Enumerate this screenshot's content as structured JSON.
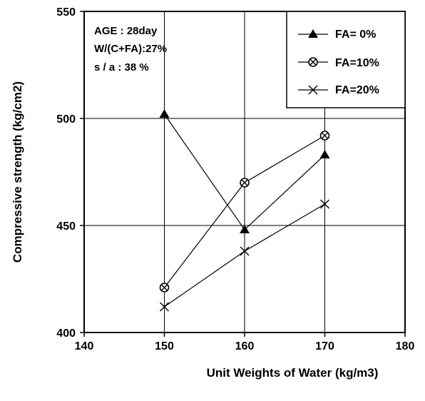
{
  "chart_data": {
    "type": "line",
    "xlabel": "Unit Weights of  Water (kg/m3)",
    "ylabel": "Compressive strength  (kg/cm2)",
    "xlim": [
      140,
      180
    ],
    "ylim": [
      400,
      550
    ],
    "x_ticks": [
      "140",
      "150",
      "160",
      "170",
      "180"
    ],
    "y_ticks": [
      "400",
      "450",
      "500",
      "550"
    ],
    "grid": true,
    "legend_position": "top-right",
    "annotations": [
      "AGE : 28day",
      "W/(C+FA):27%",
      "s / a : 38 %"
    ],
    "series": [
      {
        "name": "FA= 0%",
        "marker": "triangle",
        "x": [
          150,
          160,
          170
        ],
        "values": [
          502,
          448,
          483
        ]
      },
      {
        "name": "FA=10%",
        "marker": "circle-cross",
        "x": [
          150,
          160,
          170
        ],
        "values": [
          421,
          470,
          492
        ]
      },
      {
        "name": "FA=20%",
        "marker": "x",
        "x": [
          150,
          160,
          170
        ],
        "values": [
          412,
          438,
          460
        ]
      }
    ]
  }
}
